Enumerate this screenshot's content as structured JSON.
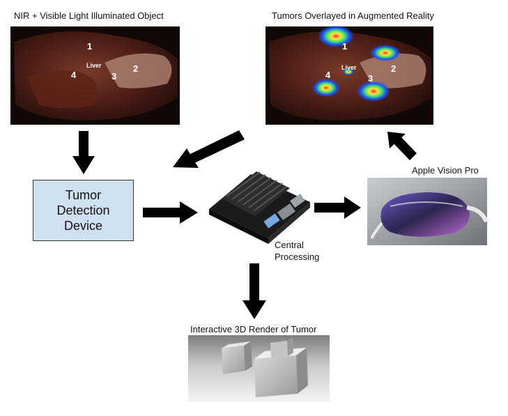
{
  "diagram": {
    "nodes": {
      "nir_image": {
        "caption": "NIR + Visible Light Illuminated Object",
        "markers": [
          "1",
          "2",
          "3",
          "4"
        ],
        "organ_label": "Liver"
      },
      "ar_image": {
        "caption": "Tumors Overlayed in Augmented Reality",
        "markers": [
          "1",
          "2",
          "3",
          "4"
        ],
        "organ_label": "Liver"
      },
      "detection_device": {
        "text": "Tumor\nDetection\nDevice"
      },
      "central_processing": {
        "caption": "Central\nProcessing"
      },
      "vision_pro": {
        "caption": "Apple Vision Pro"
      },
      "render_3d": {
        "caption": "Interactive 3D Render of Tumor"
      }
    },
    "edges": [
      {
        "from": "nir_image",
        "to": "detection_device"
      },
      {
        "from": "detection_device",
        "to": "central_processing"
      },
      {
        "from": "ar_image",
        "to": "detection_device"
      },
      {
        "from": "central_processing",
        "to": "vision_pro"
      },
      {
        "from": "vision_pro",
        "to": "ar_image"
      },
      {
        "from": "central_processing",
        "to": "render_3d"
      }
    ],
    "colors": {
      "box_fill": "#cfe0f1",
      "arrow": "#000000",
      "tumor_glow": "#1a52ff"
    }
  }
}
